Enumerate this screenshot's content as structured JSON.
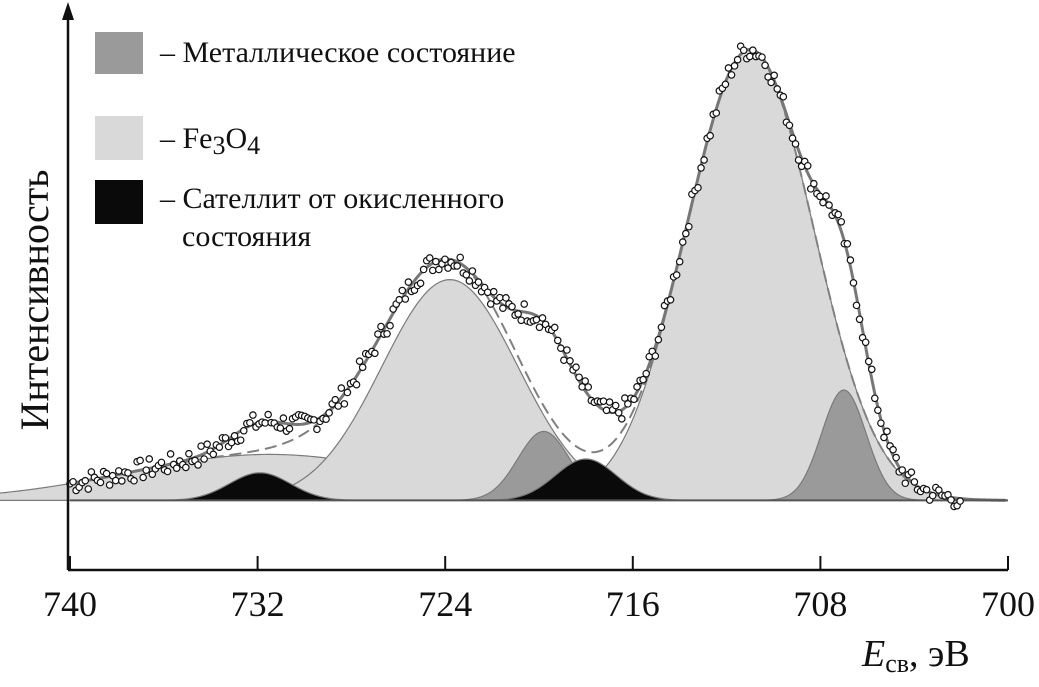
{
  "chart_data": {
    "type": "area",
    "title": "",
    "ylabel": "Интенсивность",
    "xlabel": {
      "symbol": "E",
      "subscript": "св",
      "unit": ", эВ"
    },
    "x_reversed": true,
    "xlim": [
      740,
      700
    ],
    "x_ticks": [
      740,
      732,
      724,
      716,
      708,
      700
    ],
    "x_tick_labels": [
      "740",
      "732",
      "724",
      "716",
      "708",
      "700"
    ],
    "y_ticks": [],
    "grid": false,
    "legend_position": "top-left",
    "legend": [
      {
        "label": "– Металлическое состояние",
        "color": "#9a9a9a"
      },
      {
        "label_parts": [
          "– Fe",
          "3",
          "O",
          "4"
        ],
        "color": "#d9d9d9"
      },
      {
        "label_lines": [
          "– Сателлит от окисленного",
          "состояния"
        ],
        "color": "#0a0a0a"
      }
    ],
    "series": [
      {
        "name": "Fe3O4",
        "color": "#d9d9d9",
        "components": [
          {
            "center": 731.5,
            "height": 0.1,
            "width": 6.0
          },
          {
            "center": 723.8,
            "height": 0.48,
            "width": 2.9
          },
          {
            "center": 711.0,
            "height": 0.98,
            "width": 2.7
          }
        ]
      },
      {
        "name": "Металлическое состояние",
        "color": "#9a9a9a",
        "components": [
          {
            "center": 719.8,
            "height": 0.15,
            "width": 1.1
          },
          {
            "center": 707.0,
            "height": 0.24,
            "width": 0.95
          }
        ]
      },
      {
        "name": "Сателлит от окисленного состояния",
        "color": "#0a0a0a",
        "components": [
          {
            "center": 731.9,
            "height": 0.06,
            "width": 1.3
          },
          {
            "center": 718.0,
            "height": 0.09,
            "width": 1.3
          }
        ]
      }
    ],
    "baseline": 0.01,
    "measured_points": "open circles scattered around the fitted envelope",
    "ylim": [
      -0.1,
      1.1
    ]
  }
}
